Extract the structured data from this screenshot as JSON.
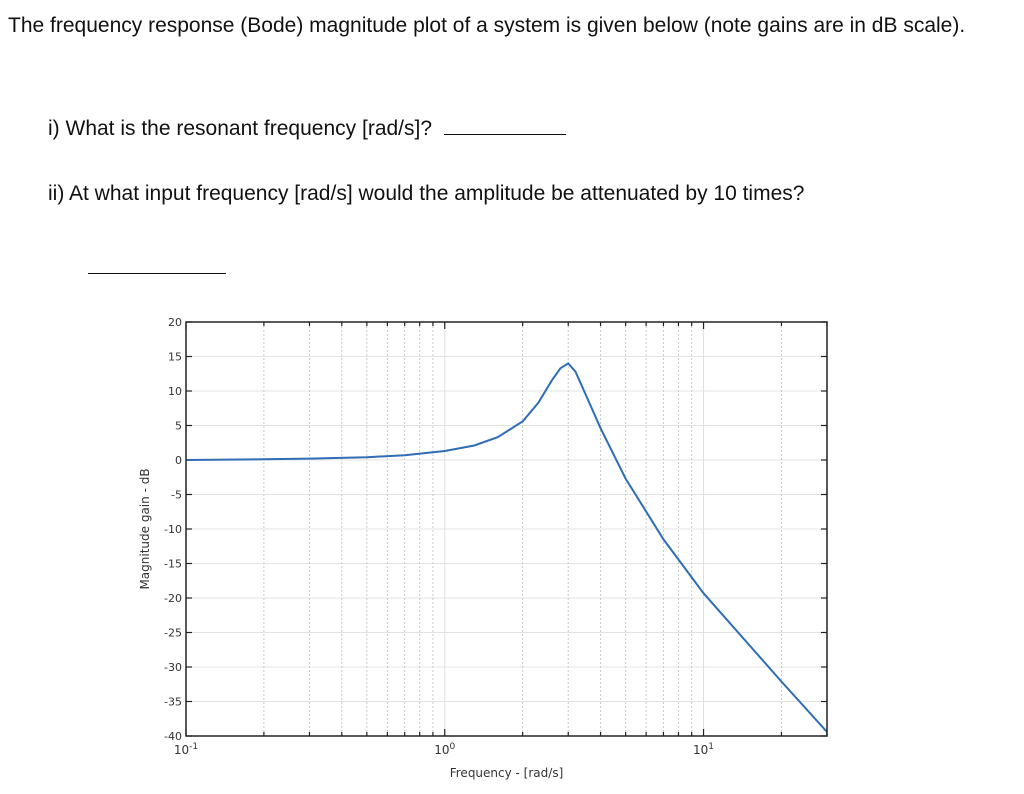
{
  "question": {
    "intro": "The frequency response (Bode) magnitude plot of a system is given below (note gains are in dB scale).",
    "q1_text": "i) What is the resonant frequency [rad/s]?",
    "q2_text": "ii) At what input frequency [rad/s] would the amplitude be attenuated by 10 times?"
  },
  "chart_data": {
    "type": "line",
    "xscale": "log",
    "xlim": [
      0.1,
      30
    ],
    "ylim": [
      -40,
      20
    ],
    "grid": true,
    "xlabel": "Frequency - [rad/s]",
    "ylabel": "Magnitude gain - dB",
    "yticks": [
      20,
      15,
      10,
      5,
      0,
      -5,
      -10,
      -15,
      -20,
      -25,
      -30,
      -35,
      -40
    ],
    "ytick_labels": [
      "20",
      "15",
      "10",
      "5",
      "0",
      "-5",
      "-10",
      "-15",
      "-20",
      "-25",
      "-30",
      "-35",
      "-40"
    ],
    "xticks": [
      {
        "value": 0.1,
        "base": "10",
        "exp": "-1"
      },
      {
        "value": 1,
        "base": "10",
        "exp": "0"
      },
      {
        "value": 10,
        "base": "10",
        "exp": "1"
      }
    ],
    "line_color": "#2f6db5",
    "series": [
      {
        "x": [
          0.1,
          0.2,
          0.3,
          0.5,
          0.7,
          1.0,
          1.3,
          1.6,
          2.0,
          2.3,
          2.6,
          2.8,
          3.0,
          3.2,
          3.5,
          4.0,
          5.0,
          7.0,
          10.0,
          15.0,
          20.0,
          30.0
        ],
        "y": [
          0.0,
          0.1,
          0.2,
          0.4,
          0.7,
          1.3,
          2.1,
          3.3,
          5.6,
          8.3,
          11.6,
          13.3,
          14.0,
          12.8,
          9.5,
          4.6,
          -2.7,
          -11.5,
          -19.3,
          -26.8,
          -32.1,
          -39.4
        ]
      }
    ]
  }
}
